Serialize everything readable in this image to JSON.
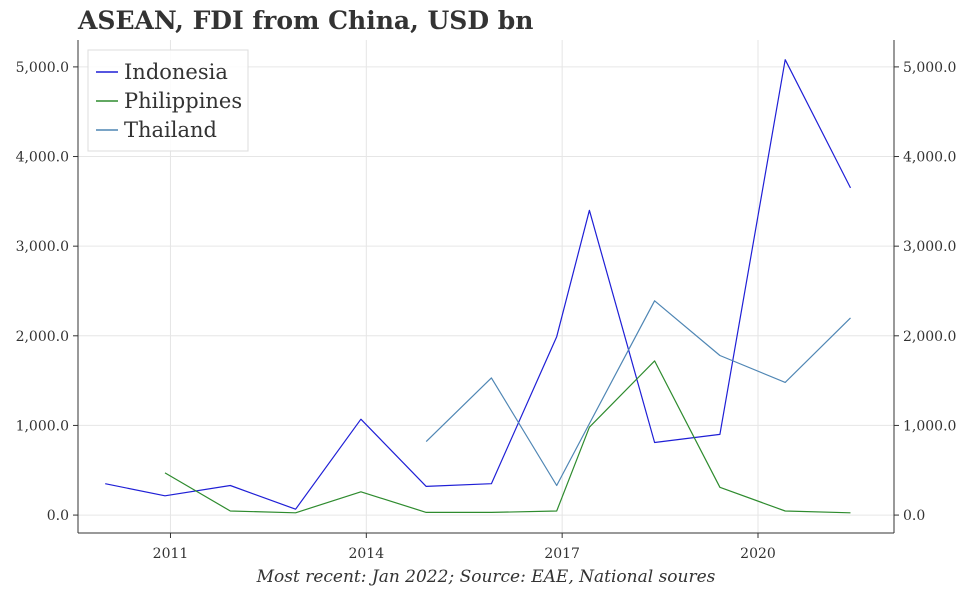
{
  "chart_data": {
    "type": "line",
    "title": "ASEAN, FDI from China, USD bn",
    "caption": "Most recent: Jan 2022; Source: EAE, National soures",
    "xlabel": "",
    "ylabel": "",
    "x_ticks": [
      {
        "label": "2011",
        "x": "2011-01"
      },
      {
        "label": "2014",
        "x": "2014-01"
      },
      {
        "label": "2017",
        "x": "2017-01"
      },
      {
        "label": "2020",
        "x": "2020-01"
      }
    ],
    "y_ticks": [
      "0.0",
      "1,000.0",
      "2,000.0",
      "3,000.0",
      "4,000.0",
      "5,000.0"
    ],
    "ylim": [
      -200,
      5300
    ],
    "xlim": [
      "2009-08",
      "2022-02"
    ],
    "grid": true,
    "legend_position": "top-left",
    "series": [
      {
        "name": "Indonesia",
        "color": "#1f1fd6",
        "points": [
          {
            "x": "2010-01",
            "y": 350
          },
          {
            "x": "2010-12",
            "y": 215
          },
          {
            "x": "2011-12",
            "y": 330
          },
          {
            "x": "2012-12",
            "y": 65
          },
          {
            "x": "2013-12",
            "y": 1070
          },
          {
            "x": "2014-12",
            "y": 320
          },
          {
            "x": "2015-12",
            "y": 350
          },
          {
            "x": "2016-12",
            "y": 1990
          },
          {
            "x": "2017-06",
            "y": 3400
          },
          {
            "x": "2018-06",
            "y": 810
          },
          {
            "x": "2019-06",
            "y": 900
          },
          {
            "x": "2020-06",
            "y": 5080
          },
          {
            "x": "2021-06",
            "y": 3650
          }
        ]
      },
      {
        "name": "Philippines",
        "color": "#2e8b2e",
        "points": [
          {
            "x": "2010-12",
            "y": 470
          },
          {
            "x": "2011-12",
            "y": 45
          },
          {
            "x": "2012-12",
            "y": 25
          },
          {
            "x": "2013-12",
            "y": 260
          },
          {
            "x": "2014-12",
            "y": 30
          },
          {
            "x": "2015-12",
            "y": 30
          },
          {
            "x": "2016-12",
            "y": 45
          },
          {
            "x": "2017-06",
            "y": 980
          },
          {
            "x": "2018-06",
            "y": 1720
          },
          {
            "x": "2019-06",
            "y": 310
          },
          {
            "x": "2020-06",
            "y": 45
          },
          {
            "x": "2021-06",
            "y": 25
          }
        ]
      },
      {
        "name": "Thailand",
        "color": "#4f86b4",
        "points": [
          {
            "x": "2014-12",
            "y": 820
          },
          {
            "x": "2015-12",
            "y": 1530
          },
          {
            "x": "2016-12",
            "y": 330
          },
          {
            "x": "2017-06",
            "y": 1020
          },
          {
            "x": "2018-06",
            "y": 2390
          },
          {
            "x": "2019-06",
            "y": 1780
          },
          {
            "x": "2020-06",
            "y": 1480
          },
          {
            "x": "2021-06",
            "y": 2200
          }
        ]
      }
    ]
  }
}
